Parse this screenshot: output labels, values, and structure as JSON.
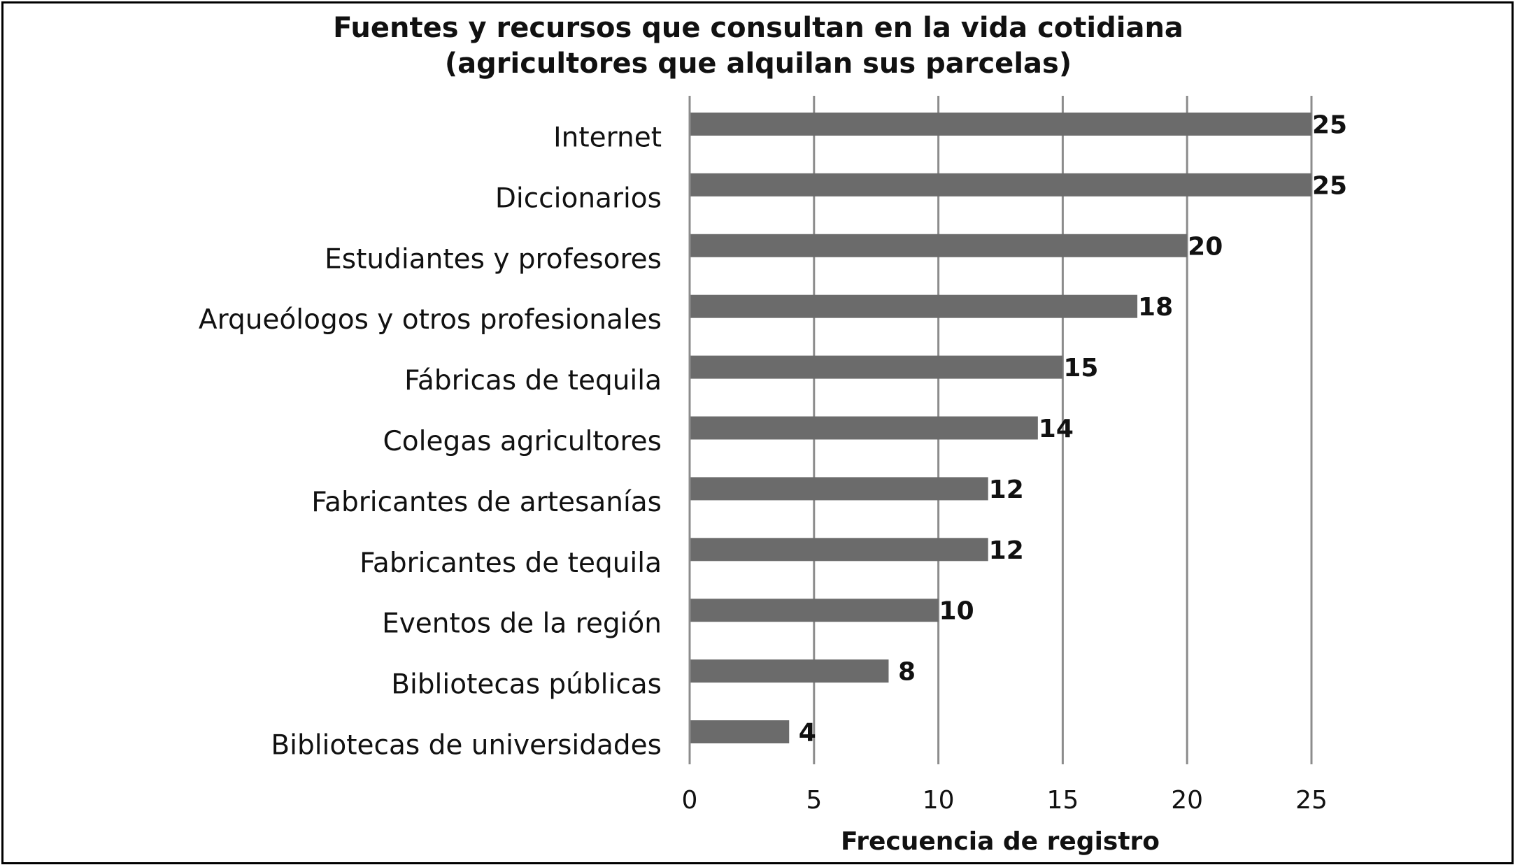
{
  "chart_data": {
    "type": "bar",
    "orientation": "horizontal",
    "title": "Fuentes y recursos que consultan en la vida cotidiana",
    "subtitle": "(agricultores que alquilan sus parcelas)",
    "xlabel": "Frecuencia de registro",
    "ylabel": "",
    "categories": [
      "Internet",
      "Diccionarios",
      "Estudiantes y profesores",
      "Arqueólogos y otros profesionales",
      "Fábricas de tequila",
      "Colegas agricultores",
      "Fabricantes de artesanías",
      "Fabricantes de tequila",
      "Eventos de la región",
      "Bibliotecas públicas",
      "Bibliotecas de universidades"
    ],
    "values": [
      25,
      25,
      20,
      18,
      15,
      14,
      12,
      12,
      10,
      8,
      4
    ],
    "xlim": [
      0,
      25
    ],
    "ticks": [
      "0",
      "5",
      "10",
      "15",
      "20",
      "25"
    ],
    "grid": true,
    "legend": "none",
    "bar_color": "#6b6b6b",
    "grid_color": "#8c8c8c"
  }
}
